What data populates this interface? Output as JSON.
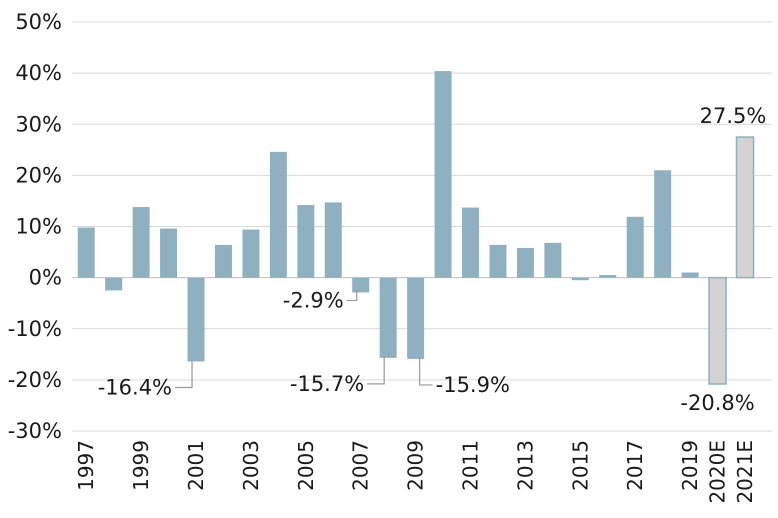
{
  "chart_data": {
    "type": "bar",
    "title": "",
    "xlabel": "",
    "ylabel": "",
    "ylim": [
      -30,
      50
    ],
    "y_ticks": [
      -30,
      -20,
      -10,
      0,
      10,
      20,
      30,
      40,
      50
    ],
    "y_tick_labels": [
      "-30%",
      "-20%",
      "-10%",
      "0%",
      "10%",
      "20%",
      "30%",
      "40%",
      "50%"
    ],
    "grid": true,
    "legend": "none",
    "colors": {
      "actual": "#8eb0c0",
      "estimate": "#d3d3d3",
      "estimate_border": "#8eb0c0"
    },
    "categories": [
      "1997",
      "1998",
      "1999",
      "2000",
      "2001",
      "2002",
      "2003",
      "2004",
      "2005",
      "2006",
      "2007",
      "2008",
      "2009",
      "2010",
      "2011",
      "2012",
      "2013",
      "2014",
      "2015",
      "2016",
      "2017",
      "2018",
      "2019",
      "2020E",
      "2021E"
    ],
    "x_tick_labels": [
      "1997",
      "",
      "1999",
      "",
      "2001",
      "",
      "2003",
      "",
      "2005",
      "",
      "2007",
      "",
      "2009",
      "",
      "2011",
      "",
      "2013",
      "",
      "2015",
      "",
      "2017",
      "",
      "2019",
      "2020E",
      "2021E"
    ],
    "values": [
      9.8,
      -2.5,
      13.8,
      9.6,
      -16.4,
      6.4,
      9.4,
      24.6,
      14.2,
      14.7,
      -2.9,
      -15.7,
      -15.9,
      40.4,
      13.7,
      6.4,
      5.8,
      6.8,
      -0.5,
      0.5,
      11.9,
      21.0,
      1.0,
      -20.8,
      27.5
    ],
    "estimate": [
      false,
      false,
      false,
      false,
      false,
      false,
      false,
      false,
      false,
      false,
      false,
      false,
      false,
      false,
      false,
      false,
      false,
      false,
      false,
      false,
      false,
      false,
      false,
      true,
      true
    ],
    "data_labels": [
      {
        "index": 4,
        "text": "-16.4%"
      },
      {
        "index": 10,
        "text": "-2.9%"
      },
      {
        "index": 11,
        "text": "-15.7%"
      },
      {
        "index": 12,
        "text": "-15.9%"
      },
      {
        "index": 23,
        "text": "-20.8%"
      },
      {
        "index": 24,
        "text": "27.5%"
      }
    ]
  }
}
